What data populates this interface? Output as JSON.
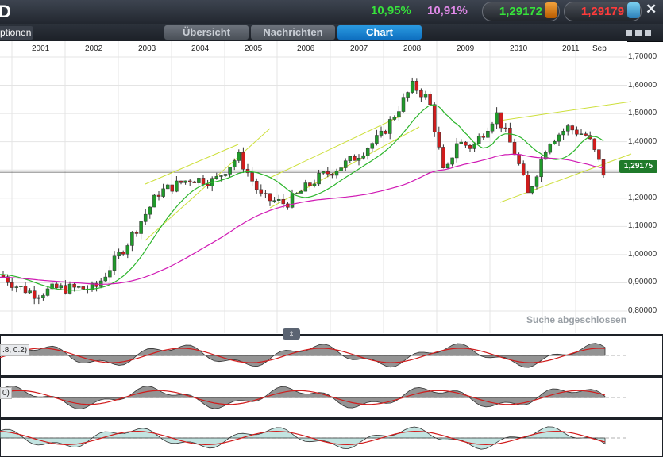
{
  "window": {
    "title": "D",
    "close_label": "✕"
  },
  "quotes": {
    "pct_green": "10,95%",
    "pct_violet": "10,91%",
    "bid": "1,29172",
    "ask": "1,29179",
    "down_arrow_icon": "down-arrow-icon",
    "up_arrow_icon": "up-arrow-icon"
  },
  "tabs": {
    "left": "ptionen",
    "items": [
      "Übersicht",
      "Nachrichten",
      "Chart"
    ],
    "active": "Chart"
  },
  "chart": {
    "x_labels": [
      "2001",
      "2002",
      "2003",
      "2004",
      "2005",
      "2006",
      "2007",
      "2008",
      "2009",
      "2010",
      "2011",
      "Sep"
    ],
    "y_labels": [
      "1,70000",
      "1,60000",
      "1,50000",
      "1,40000",
      "1,30000",
      "1,20000",
      "1,10000",
      "1,00000",
      "0,90000",
      "0,80000"
    ],
    "current_price": "1,29175",
    "status": "Suche abgeschlossen",
    "indicator1_label": ".8, 0.2)",
    "indicator2_label": "0)",
    "colors": {
      "up": "#1f9a2a",
      "down": "#d11c1c",
      "ma_slow": "#d01ab4",
      "ma_fast": "#2cb52c",
      "channel": "#cddf3a"
    }
  },
  "chart_data": {
    "type": "candlestick",
    "x_ticks": [
      "2001",
      "2002",
      "2003",
      "2004",
      "2005",
      "2006",
      "2007",
      "2008",
      "2009",
      "2010",
      "2011",
      "Sep"
    ],
    "ylim": [
      0.8,
      1.7
    ],
    "last": 1.29175,
    "grid": true
  }
}
